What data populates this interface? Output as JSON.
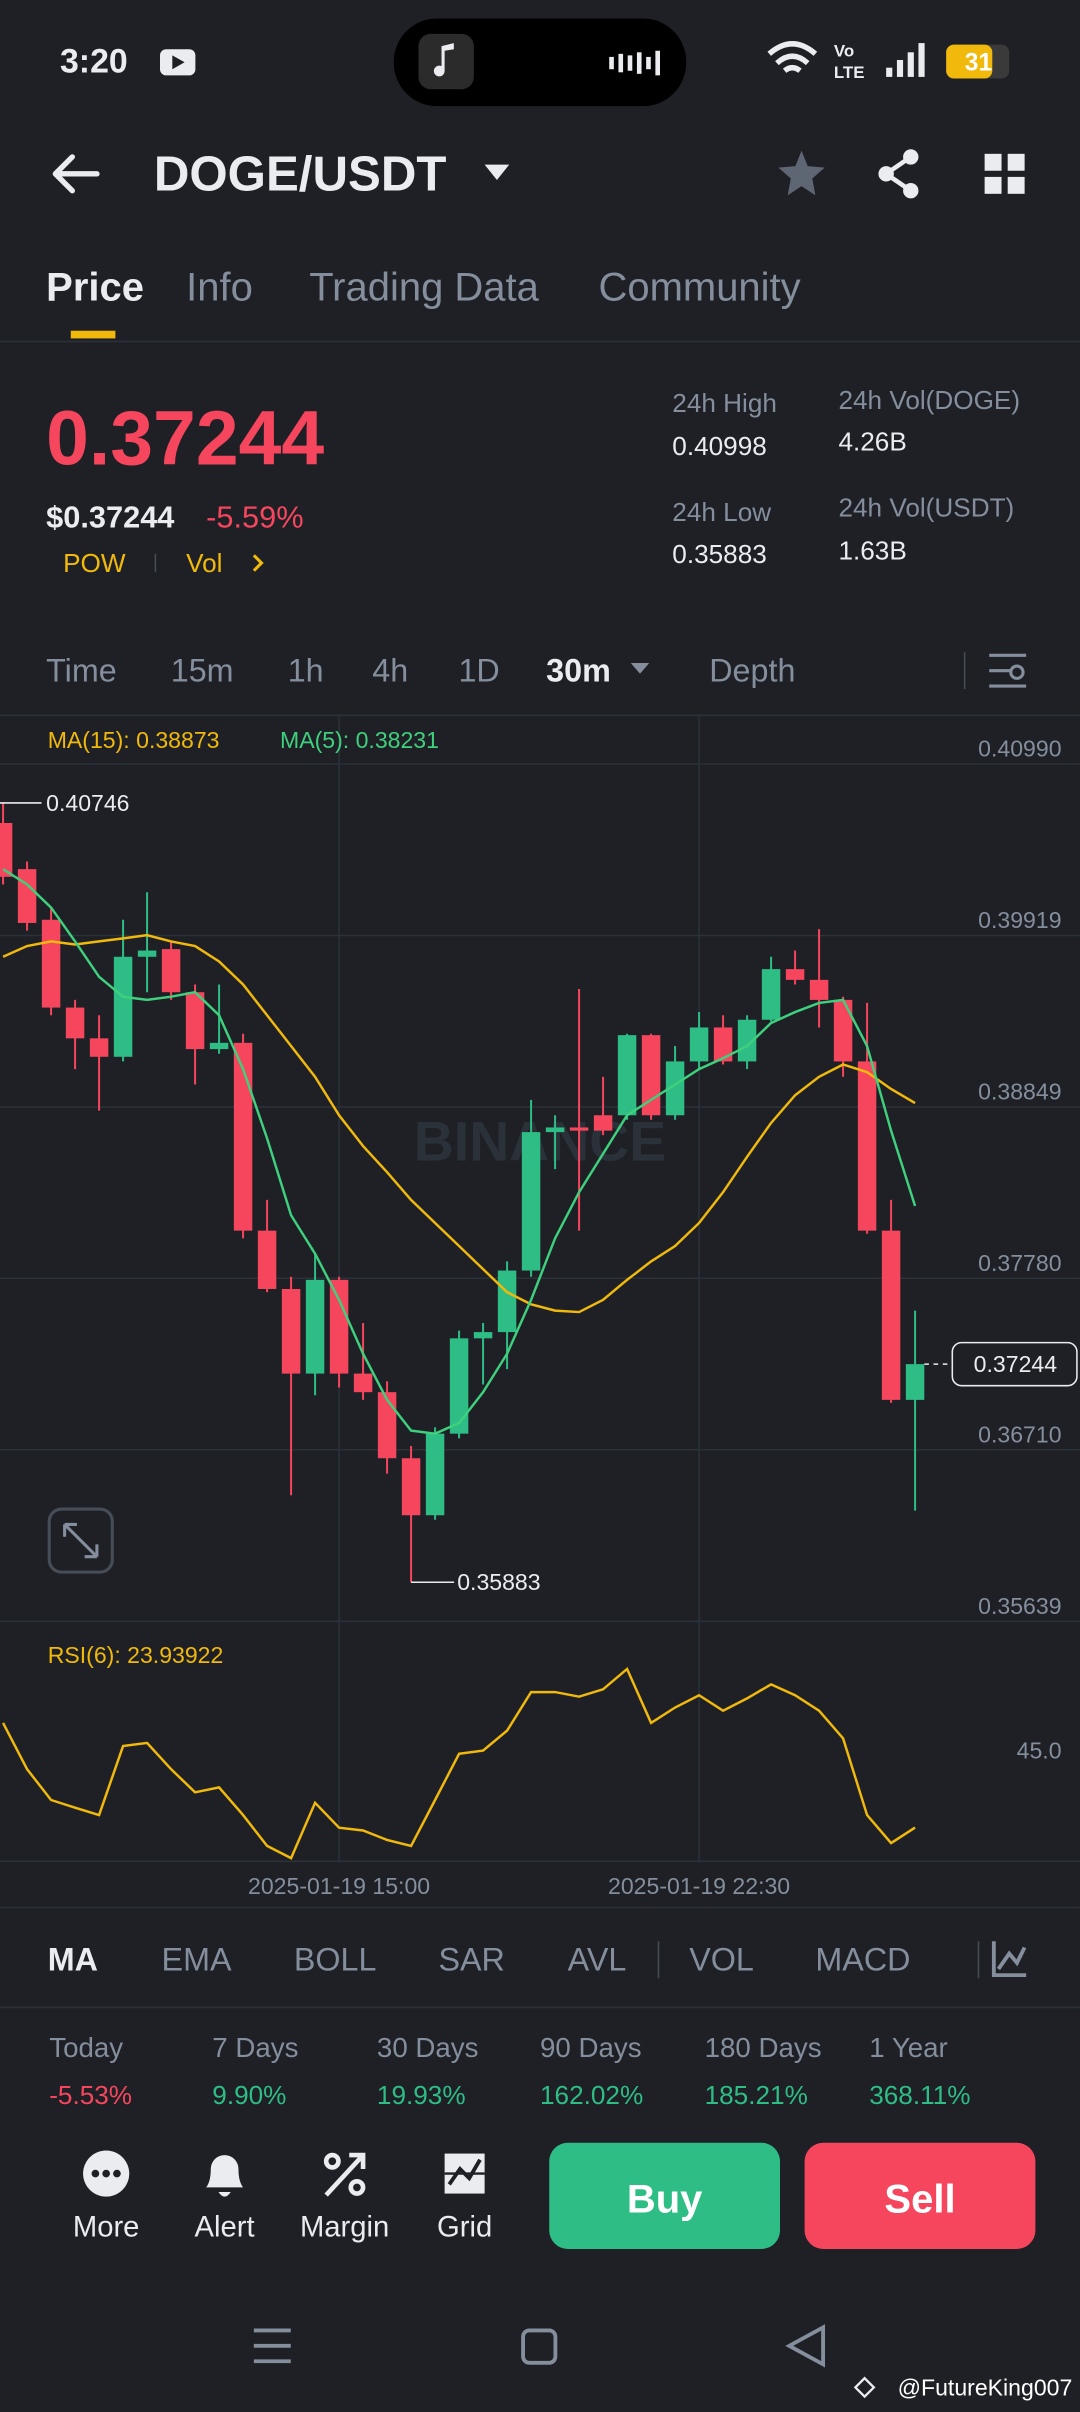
{
  "status_bar": {
    "time": "3:20",
    "network": [
      "Vo",
      "LTE"
    ],
    "battery": "31"
  },
  "header": {
    "pair": "DOGE/USDT"
  },
  "tabs": [
    "Price",
    "Info",
    "Trading Data",
    "Community"
  ],
  "ticker": {
    "price": "0.37244",
    "price_usd": "$0.37244",
    "change": "-5.59%",
    "tags": [
      "POW",
      "Vol"
    ],
    "stats": [
      {
        "label": "24h High",
        "value": "0.40998"
      },
      {
        "label": "24h Vol(DOGE)",
        "value": "4.26B"
      },
      {
        "label": "24h Low",
        "value": "0.35883"
      },
      {
        "label": "24h Vol(USDT)",
        "value": "1.63B"
      }
    ]
  },
  "intervals": [
    "Time",
    "15m",
    "1h",
    "4h",
    "1D",
    "30m",
    "Depth"
  ],
  "chart_data": [
    {
      "type": "candlestick",
      "categories": [
        null,
        null,
        null,
        null,
        null,
        null,
        null,
        null,
        null,
        null,
        null,
        null,
        null,
        null,
        "2025-01-19 15:00",
        null,
        null,
        null,
        null,
        null,
        null,
        null,
        null,
        null,
        null,
        null,
        null,
        null,
        null,
        "2025-01-19 22:30",
        null,
        null,
        null,
        null,
        null,
        null,
        null,
        null,
        null
      ],
      "open": [
        0.40621,
        0.40333,
        0.40017,
        0.39469,
        0.39277,
        0.39162,
        0.39786,
        0.39834,
        0.39565,
        0.3921,
        0.39249,
        0.38077,
        0.37713,
        0.37185,
        0.3777,
        0.37185,
        0.37069,
        0.36657,
        0.36301,
        0.3681,
        0.37405,
        0.37444,
        0.37828,
        0.38692,
        0.38721,
        0.38797,
        0.38797,
        0.39297,
        0.38797,
        0.39133,
        0.39345,
        0.39133,
        0.39393,
        0.39709,
        0.39642,
        0.39517,
        0.39133,
        0.38077,
        0.37021
      ],
      "high": [
        0.40746,
        0.40381,
        0.40093,
        0.39517,
        0.39421,
        0.40017,
        0.40189,
        0.39882,
        0.39613,
        0.39613,
        0.39306,
        0.38269,
        0.37789,
        0.37933,
        0.37789,
        0.37501,
        0.37137,
        0.36733,
        0.36849,
        0.37453,
        0.37501,
        0.37885,
        0.38893,
        0.38797,
        0.39585,
        0.39037,
        0.39306,
        0.39306,
        0.39229,
        0.39441,
        0.39421,
        0.39421,
        0.39786,
        0.39825,
        0.39959,
        0.39537,
        0.39498,
        0.38269,
        0.37578
      ],
      "low": [
        0.40237,
        0.39949,
        0.39421,
        0.39085,
        0.38826,
        0.39133,
        0.39565,
        0.39517,
        0.38989,
        0.39181,
        0.38029,
        0.37693,
        0.36426,
        0.3705,
        0.37098,
        0.37021,
        0.36561,
        0.35883,
        0.36273,
        0.36781,
        0.37117,
        0.37213,
        0.37789,
        0.38461,
        0.38077,
        0.38673,
        0.38769,
        0.38769,
        0.38769,
        0.39085,
        0.39114,
        0.39085,
        0.39383,
        0.39613,
        0.39345,
        0.39037,
        0.38058,
        0.37002,
        0.3633
      ],
      "close": [
        0.40285,
        0.39997,
        0.39469,
        0.39277,
        0.39162,
        0.39786,
        0.39825,
        0.39565,
        0.3921,
        0.39249,
        0.38077,
        0.37713,
        0.37185,
        0.3777,
        0.37185,
        0.37069,
        0.36657,
        0.36301,
        0.3681,
        0.37405,
        0.37444,
        0.37828,
        0.38692,
        0.38721,
        0.38701,
        0.38701,
        0.39297,
        0.38797,
        0.39133,
        0.39345,
        0.39133,
        0.39393,
        0.39709,
        0.39642,
        0.39517,
        0.39133,
        0.38077,
        0.37021,
        0.37244
      ],
      "up_color": "#2ebd85",
      "down_color": "#f6465d",
      "series": [
        {
          "name": "MA(15): 0.38873",
          "color": "#f0b90b",
          "values": [
            0.39786,
            0.39853,
            0.39882,
            0.39863,
            0.39882,
            0.39901,
            0.39921,
            0.39882,
            0.39853,
            0.39757,
            0.39613,
            0.39421,
            0.39229,
            0.39037,
            0.38797,
            0.38605,
            0.38442,
            0.38269,
            0.38125,
            0.37981,
            0.37837,
            0.37693,
            0.37617,
            0.37578,
            0.37569,
            0.37645,
            0.3777,
            0.37885,
            0.37981,
            0.38125,
            0.38317,
            0.38538,
            0.38749,
            0.38922,
            0.39037,
            0.39114,
            0.39066,
            0.38961,
            0.38873
          ]
        },
        {
          "name": "MA(5): 0.38231",
          "color": "#3fd07d",
          "values": [
            0.40333,
            0.40237,
            0.40093,
            0.39882,
            0.39661,
            0.39537,
            0.39517,
            0.39537,
            0.39565,
            0.39421,
            0.39085,
            0.38653,
            0.38173,
            0.37933,
            0.37645,
            0.37309,
            0.37021,
            0.36829,
            0.3681,
            0.36877,
            0.37069,
            0.37309,
            0.37645,
            0.38029,
            0.38317,
            0.38557,
            0.38797,
            0.38893,
            0.38989,
            0.39085,
            0.39153,
            0.39229,
            0.39373,
            0.39441,
            0.39498,
            0.39517,
            0.39229,
            0.38701,
            0.38231
          ]
        }
      ],
      "ylim": [
        0.35639,
        0.41293
      ],
      "yticks": [
        {
          "value": 0.4099,
          "label": "0.40990"
        },
        0.39919,
        0.38849,
        {
          "value": 0.3778,
          "label": "0.37780"
        },
        {
          "value": 0.3671,
          "label": "0.36710"
        },
        0.35639
      ],
      "grid": true,
      "watermark": "BINANCE",
      "high_marker": 0.40746,
      "low_marker": 0.35883,
      "last_price": 0.37244
    },
    {
      "type": "line",
      "series": [
        {
          "name": "RSI(6): 23.93922",
          "color": "#f0b90b",
          "values": [
            53.8,
            40.6,
            31.8,
            29.6,
            27.5,
            47.2,
            48.1,
            40.6,
            34.0,
            35.4,
            27.5,
            18.7,
            15.2,
            31.0,
            23.9,
            23.1,
            20.4,
            18.7,
            31.8,
            45.0,
            45.9,
            51.6,
            62.6,
            62.6,
            61.3,
            63.4,
            69.2,
            53.8,
            58.2,
            61.7,
            57.3,
            60.8,
            64.8,
            61.7,
            57.3,
            49.4,
            27.5,
            19.5,
            23.93922
          ]
        }
      ],
      "ylim": [
        14.3,
        82.8
      ],
      "yticks": [
        {
          "value": 45,
          "label": "45.0"
        }
      ],
      "grid": false
    }
  ],
  "indicator_tabs": [
    "MA",
    "EMA",
    "BOLL",
    "SAR",
    "AVL",
    "VOL",
    "MACD"
  ],
  "performance": [
    {
      "label": "Today",
      "value": "-5.53%"
    },
    {
      "label": "7 Days",
      "value": "9.90%"
    },
    {
      "label": "30 Days",
      "value": "19.93%"
    },
    {
      "label": "90 Days",
      "value": "162.02%"
    },
    {
      "label": "180 Days",
      "value": "185.21%"
    },
    {
      "label": "1 Year",
      "value": "368.11%"
    }
  ],
  "actions": [
    "More",
    "Alert",
    "Margin",
    "Grid"
  ],
  "buy": "Buy",
  "sell": "Sell",
  "watermark": "@FutureKing007"
}
